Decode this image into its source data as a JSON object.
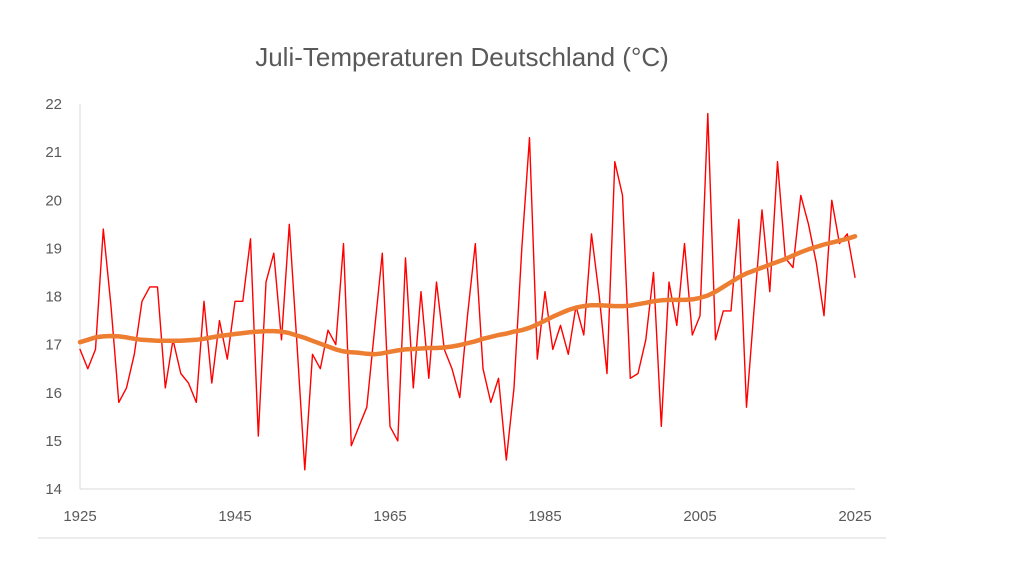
{
  "chart_data": {
    "type": "line",
    "title": "Juli-Temperaturen Deutschland (°C)",
    "xlabel": "",
    "ylabel": "",
    "xlim": [
      1925,
      2025
    ],
    "ylim": [
      14,
      22
    ],
    "x_ticks": [
      "1925",
      "1945",
      "1965",
      "1985",
      "2005",
      "2025"
    ],
    "y_ticks": [
      "14",
      "15",
      "16",
      "17",
      "18",
      "19",
      "20",
      "21",
      "22"
    ],
    "grid": false,
    "legend": "none",
    "x": [
      1925,
      1926,
      1927,
      1928,
      1929,
      1930,
      1931,
      1932,
      1933,
      1934,
      1935,
      1936,
      1937,
      1938,
      1939,
      1940,
      1941,
      1942,
      1943,
      1944,
      1945,
      1946,
      1947,
      1948,
      1949,
      1950,
      1951,
      1952,
      1953,
      1954,
      1955,
      1956,
      1957,
      1958,
      1959,
      1960,
      1961,
      1962,
      1963,
      1964,
      1965,
      1966,
      1967,
      1968,
      1969,
      1970,
      1971,
      1972,
      1973,
      1974,
      1975,
      1976,
      1977,
      1978,
      1979,
      1980,
      1981,
      1982,
      1983,
      1984,
      1985,
      1986,
      1987,
      1988,
      1989,
      1990,
      1991,
      1992,
      1993,
      1994,
      1995,
      1996,
      1997,
      1998,
      1999,
      2000,
      2001,
      2002,
      2003,
      2004,
      2005,
      2006,
      2007,
      2008,
      2009,
      2010,
      2011,
      2012,
      2013,
      2014,
      2015,
      2016,
      2017,
      2018,
      2019,
      2020,
      2021,
      2022,
      2023,
      2024,
      2025
    ],
    "series": [
      {
        "color": "#ff0000",
        "values": [
          16.9,
          16.5,
          16.9,
          19.4,
          17.8,
          15.8,
          16.1,
          16.8,
          17.9,
          18.2,
          18.2,
          16.1,
          17.1,
          16.4,
          16.2,
          15.8,
          17.9,
          16.2,
          17.5,
          16.7,
          17.9,
          17.9,
          19.2,
          15.1,
          18.3,
          18.9,
          17.1,
          19.5,
          17.0,
          14.4,
          16.8,
          16.5,
          17.3,
          17.0,
          19.1,
          14.9,
          15.3,
          15.7,
          17.3,
          18.9,
          15.3,
          15.0,
          18.8,
          16.1,
          18.1,
          16.3,
          18.3,
          16.9,
          16.5,
          15.9,
          17.6,
          19.1,
          16.5,
          15.8,
          16.3,
          14.6,
          16.1,
          19.0,
          21.3,
          16.7,
          18.1,
          16.9,
          17.4,
          16.8,
          17.8,
          17.2,
          19.3,
          18.0,
          16.4,
          20.8,
          20.1,
          16.3,
          16.4,
          17.1,
          18.5,
          15.3,
          18.3,
          17.4,
          19.1,
          17.2,
          17.6,
          21.8,
          17.1,
          17.7,
          17.7,
          19.6,
          15.7,
          17.8,
          19.8,
          18.1,
          20.8,
          18.8,
          18.6,
          20.1,
          19.5,
          18.7,
          17.6,
          20.0,
          19.1,
          19.3,
          18.4
        ]
      },
      {
        "color": "#ed7d31",
        "values": [
          17.05,
          17.1,
          17.15,
          17.17,
          17.18,
          17.17,
          17.15,
          17.12,
          17.1,
          17.09,
          17.08,
          17.08,
          17.08,
          17.08,
          17.09,
          17.1,
          17.12,
          17.15,
          17.18,
          17.2,
          17.22,
          17.24,
          17.26,
          17.27,
          17.28,
          17.28,
          17.27,
          17.24,
          17.19,
          17.14,
          17.08,
          17.02,
          16.96,
          16.9,
          16.86,
          16.84,
          16.83,
          16.81,
          16.8,
          16.82,
          16.85,
          16.88,
          16.9,
          16.91,
          16.92,
          16.93,
          16.93,
          16.94,
          16.96,
          16.99,
          17.03,
          17.07,
          17.12,
          17.16,
          17.2,
          17.23,
          17.27,
          17.3,
          17.35,
          17.42,
          17.5,
          17.58,
          17.65,
          17.72,
          17.77,
          17.8,
          17.82,
          17.82,
          17.81,
          17.8,
          17.8,
          17.81,
          17.84,
          17.87,
          17.9,
          17.92,
          17.93,
          17.93,
          17.93,
          17.94,
          17.97,
          18.02,
          18.1,
          18.2,
          18.3,
          18.4,
          18.48,
          18.54,
          18.6,
          18.66,
          18.72,
          18.78,
          18.85,
          18.92,
          18.98,
          19.03,
          19.08,
          19.12,
          19.16,
          19.2,
          19.25
        ]
      }
    ]
  }
}
